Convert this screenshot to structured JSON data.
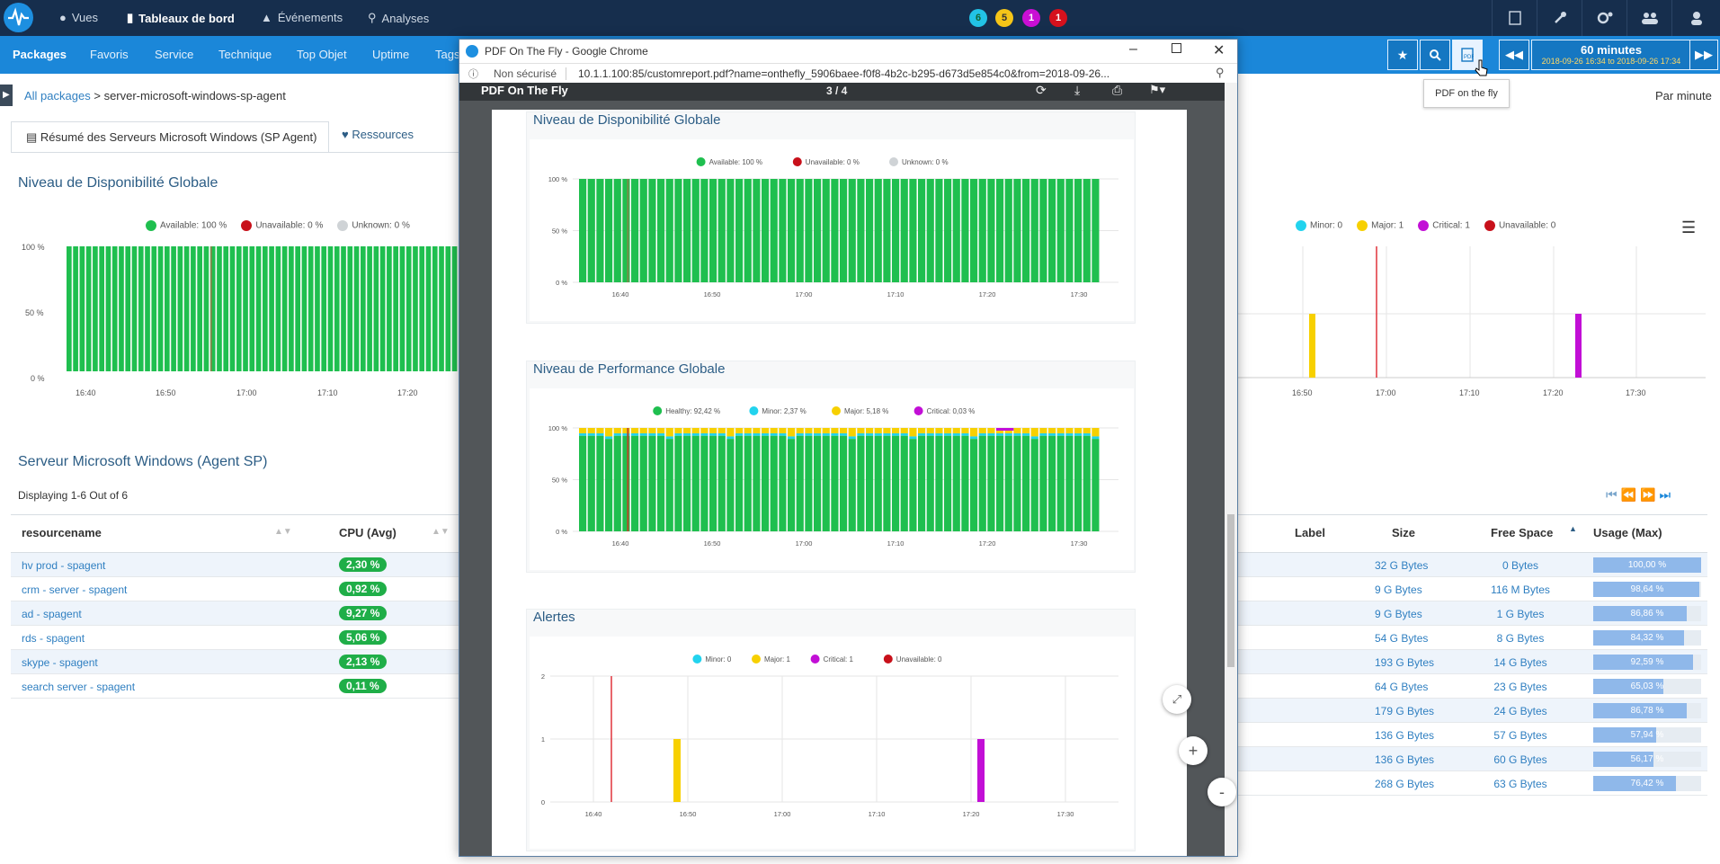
{
  "topbar": {
    "nav": [
      "Vues",
      "Tableaux de bord",
      "Événements",
      "Analyses"
    ],
    "badges": [
      {
        "count": "6",
        "color": "#22c3e6"
      },
      {
        "count": "5",
        "color": "#f5c518"
      },
      {
        "count": "1",
        "color": "#c90fd4"
      },
      {
        "count": "1",
        "color": "#d5111d"
      }
    ]
  },
  "subbar": {
    "tabs": [
      "Packages",
      "Favoris",
      "Service",
      "Technique",
      "Top Objet",
      "Uptime",
      "Tags"
    ],
    "time_label": "60 minutes",
    "time_range": "2018-09-26 16:34 to 2018-09-26 17:34",
    "tooltip": "PDF on the fly"
  },
  "breadcrumb": {
    "root": "All packages",
    "separator": ">",
    "current": "server-microsoft-windows-sp-agent"
  },
  "tabs": {
    "summary": "Résumé des Serveurs Microsoft Windows (SP Agent)",
    "resources": "Ressources"
  },
  "per_minute": "Par minute",
  "availability": {
    "title": "Niveau de Disponibilité Globale",
    "legend": [
      "Available: 100 %",
      "Unavailable: 0 %",
      "Unknown: 0 %"
    ],
    "yticks": [
      "100 %",
      "50 %",
      "0 %"
    ],
    "xticks": [
      "16:40",
      "16:50",
      "17:00",
      "17:10",
      "17:20"
    ]
  },
  "alerts_bg": {
    "legend": [
      "Minor: 0",
      "Major: 1",
      "Critical: 1",
      "Unavailable: 0"
    ],
    "xticks": [
      "16:50",
      "17:00",
      "17:10",
      "17:20",
      "17:30"
    ]
  },
  "table": {
    "title": "Serveur Microsoft Windows (Agent SP)",
    "displaying": "Displaying 1-6 Out of 6",
    "left_headers": [
      "resourcename",
      "CPU (Avg)"
    ],
    "rows": [
      {
        "name": "hv prod - spagent",
        "cpu": "2,30 %"
      },
      {
        "name": "crm - server - spagent",
        "cpu": "0,92 %"
      },
      {
        "name": "ad - spagent",
        "cpu": "9,27 %"
      },
      {
        "name": "rds - spagent",
        "cpu": "5,06 %"
      },
      {
        "name": "skype - spagent",
        "cpu": "2,13 %"
      },
      {
        "name": "search server - spagent",
        "cpu": "0,11 %"
      }
    ],
    "right_headers": [
      "Label",
      "Size",
      "Free Space",
      "Usage (Max)"
    ],
    "disks": [
      {
        "size": "32 G Bytes",
        "free": "0 Bytes",
        "usage": "100,00 %",
        "pct": 100
      },
      {
        "size": "9 G Bytes",
        "free": "116 M Bytes",
        "usage": "98,64 %",
        "pct": 98.64
      },
      {
        "size": "9 G Bytes",
        "free": "1 G Bytes",
        "usage": "86,86 %",
        "pct": 86.86
      },
      {
        "size": "54 G Bytes",
        "free": "8 G Bytes",
        "usage": "84,32 %",
        "pct": 84.32
      },
      {
        "size": "193 G Bytes",
        "free": "14 G Bytes",
        "usage": "92,59 %",
        "pct": 92.59
      },
      {
        "size": "64 G Bytes",
        "free": "23 G Bytes",
        "usage": "65,03 %",
        "pct": 65.03
      },
      {
        "size": "179 G Bytes",
        "free": "24 G Bytes",
        "usage": "86,78 %",
        "pct": 86.78
      },
      {
        "size": "136 G Bytes",
        "free": "57 G Bytes",
        "usage": "57,94 %",
        "pct": 57.94
      },
      {
        "size": "136 G Bytes",
        "free": "60 G Bytes",
        "usage": "56,17 %",
        "pct": 56.17
      },
      {
        "size": "268 G Bytes",
        "free": "63 G Bytes",
        "usage": "76,42 %",
        "pct": 76.42
      }
    ]
  },
  "chrome": {
    "title": "PDF On The Fly - Google Chrome",
    "insecure": "Non sécurisé",
    "url": "10.1.1.100:85/customreport.pdf?name=onthefly_5906baee-f0f8-4b2c-b295-d673d5e854c0&from=2018-09-26...",
    "pdf_title": "PDF On The Fly",
    "page_indicator": "3 / 4"
  },
  "pdf": {
    "sections": [
      "Niveau de Disponibilité Globale",
      "Niveau de Performance Globale",
      "Alertes"
    ],
    "avail_legend": [
      "Available: 100 %",
      "Unavailable: 0 %",
      "Unknown: 0 %"
    ],
    "perf_legend": [
      "Healthy: 92,42 %",
      "Minor: 2,37 %",
      "Major: 5,18 %",
      "Critical: 0,03 %"
    ],
    "alert_legend": [
      "Minor: 0",
      "Major: 1",
      "Critical: 1",
      "Unavailable: 0"
    ],
    "pct_yticks": [
      "100 %",
      "50 %",
      "0 %"
    ],
    "count_yticks": [
      "2",
      "1",
      "0"
    ],
    "xticks": [
      "16:40",
      "16:50",
      "17:00",
      "17:10",
      "17:20",
      "17:30"
    ]
  },
  "chart_data": [
    {
      "type": "bar",
      "title": "Niveau de Disponibilité Globale",
      "series": [
        {
          "name": "Available",
          "values": [
            100
          ]
        },
        {
          "name": "Unavailable",
          "values": [
            0
          ]
        },
        {
          "name": "Unknown",
          "values": [
            0
          ]
        }
      ],
      "ylim": [
        0,
        100
      ]
    },
    {
      "type": "bar",
      "title": "Niveau de Performance Globale",
      "series": [
        {
          "name": "Healthy",
          "values": [
            92.42
          ]
        },
        {
          "name": "Minor",
          "values": [
            2.37
          ]
        },
        {
          "name": "Major",
          "values": [
            5.18
          ]
        },
        {
          "name": "Critical",
          "values": [
            0.03
          ]
        }
      ],
      "ylim": [
        0,
        100
      ]
    },
    {
      "type": "bar",
      "title": "Alertes",
      "series": [
        {
          "name": "Minor",
          "values": [
            0
          ]
        },
        {
          "name": "Major",
          "values": [
            1
          ]
        },
        {
          "name": "Critical",
          "values": [
            1
          ]
        },
        {
          "name": "Unavailable",
          "values": [
            0
          ]
        }
      ],
      "ylim": [
        0,
        2
      ]
    }
  ],
  "colors": {
    "available": "#1fbf4f",
    "unavailable": "#c8101a",
    "unknown": "#cfd3d6",
    "minor": "#22d3ee",
    "major": "#f7d000",
    "critical": "#c20fd6",
    "accent": "#1b87d9",
    "navy": "#162e4d"
  }
}
